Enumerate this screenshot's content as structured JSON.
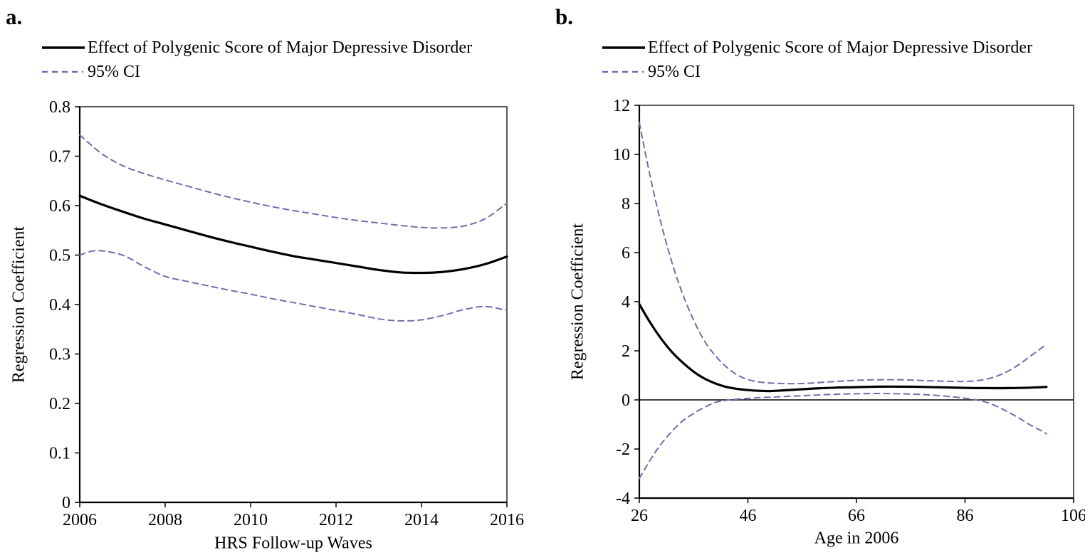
{
  "figure": {
    "colors": {
      "line": "#000000",
      "ci": "#7a68ad",
      "frame": "#595959"
    },
    "panels": [
      {
        "label": "a.",
        "legend": [
          {
            "label": "Effect of Polygenic Score of Major Depressive Disorder",
            "style": "solid"
          },
          {
            "label": "95% CI",
            "style": "dashed"
          }
        ],
        "ylabel": "Regression Coefficient",
        "xlabel": "HRS Follow-up Waves"
      },
      {
        "label": "b.",
        "legend": [
          {
            "label": "Effect of Polygenic Score of Major Depressive Disorder",
            "style": "solid"
          },
          {
            "label": "95% CI",
            "style": "dashed"
          }
        ],
        "ylabel": "Regression Coefficient",
        "xlabel": "Age in 2006"
      }
    ]
  },
  "chart_data": [
    {
      "type": "line",
      "panel": "a",
      "title": "",
      "xlabel": "HRS Follow-up Waves",
      "ylabel": "Regression Coefficient",
      "xlim": [
        2006,
        2016
      ],
      "ylim": [
        0,
        0.8
      ],
      "grid": false,
      "zero_line": false,
      "legend_position": "top-left-outside",
      "xticks": {
        "values": [
          2006,
          2008,
          2010,
          2012,
          2014,
          2016
        ],
        "labels": [
          "2006",
          "2008",
          "2010",
          "2012",
          "2014",
          "2016"
        ]
      },
      "yticks": {
        "values": [
          0,
          0.1,
          0.2,
          0.3,
          0.4,
          0.5,
          0.6,
          0.7,
          0.8
        ],
        "labels": [
          "0",
          "0.1",
          "0.2",
          "0.3",
          "0.4",
          "0.5",
          "0.6",
          "0.7",
          "0.8"
        ]
      },
      "series": [
        {
          "name": "Effect of Polygenic Score of Major Depressive Disorder",
          "style": "solid",
          "color": "#000000",
          "points": [
            [
              2006,
              0.62
            ],
            [
              2006.5,
              0.603
            ],
            [
              2007,
              0.588
            ],
            [
              2007.5,
              0.574
            ],
            [
              2008,
              0.562
            ],
            [
              2008.5,
              0.55
            ],
            [
              2009,
              0.538
            ],
            [
              2009.5,
              0.527
            ],
            [
              2010,
              0.517
            ],
            [
              2010.5,
              0.507
            ],
            [
              2011,
              0.498
            ],
            [
              2011.5,
              0.491
            ],
            [
              2012,
              0.484
            ],
            [
              2012.5,
              0.477
            ],
            [
              2013,
              0.47
            ],
            [
              2013.5,
              0.465
            ],
            [
              2014,
              0.464
            ],
            [
              2014.5,
              0.466
            ],
            [
              2015,
              0.472
            ],
            [
              2015.5,
              0.482
            ],
            [
              2016,
              0.497
            ]
          ]
        },
        {
          "name": "95% CI (upper)",
          "style": "dashed",
          "color": "#7a68ad",
          "points": [
            [
              2006,
              0.743
            ],
            [
              2006.5,
              0.706
            ],
            [
              2007,
              0.681
            ],
            [
              2007.5,
              0.665
            ],
            [
              2008,
              0.652
            ],
            [
              2008.5,
              0.64
            ],
            [
              2009,
              0.628
            ],
            [
              2009.5,
              0.617
            ],
            [
              2010,
              0.607
            ],
            [
              2010.5,
              0.598
            ],
            [
              2011,
              0.59
            ],
            [
              2011.5,
              0.583
            ],
            [
              2012,
              0.576
            ],
            [
              2012.5,
              0.57
            ],
            [
              2013,
              0.565
            ],
            [
              2013.5,
              0.56
            ],
            [
              2014,
              0.556
            ],
            [
              2014.5,
              0.555
            ],
            [
              2015,
              0.559
            ],
            [
              2015.5,
              0.574
            ],
            [
              2016,
              0.605
            ]
          ]
        },
        {
          "name": "95% CI (lower)",
          "style": "dashed",
          "color": "#7a68ad",
          "points": [
            [
              2006,
              0.5
            ],
            [
              2006.4,
              0.509
            ],
            [
              2007,
              0.5
            ],
            [
              2007.5,
              0.477
            ],
            [
              2008,
              0.457
            ],
            [
              2008.5,
              0.447
            ],
            [
              2009,
              0.438
            ],
            [
              2009.5,
              0.429
            ],
            [
              2010,
              0.421
            ],
            [
              2010.5,
              0.412
            ],
            [
              2011,
              0.404
            ],
            [
              2011.5,
              0.396
            ],
            [
              2012,
              0.388
            ],
            [
              2012.5,
              0.38
            ],
            [
              2013,
              0.371
            ],
            [
              2013.5,
              0.367
            ],
            [
              2014,
              0.369
            ],
            [
              2014.5,
              0.378
            ],
            [
              2015,
              0.39
            ],
            [
              2015.5,
              0.396
            ],
            [
              2016,
              0.388
            ]
          ]
        }
      ]
    },
    {
      "type": "line",
      "panel": "b",
      "title": "",
      "xlabel": "Age in 2006",
      "ylabel": "Regression Coefficient",
      "xlim": [
        26,
        106
      ],
      "ylim": [
        -4,
        12
      ],
      "grid": false,
      "zero_line": true,
      "legend_position": "top-left-outside",
      "xticks": {
        "values": [
          26,
          46,
          66,
          86,
          106
        ],
        "labels": [
          "26",
          "46",
          "66",
          "86",
          "106"
        ]
      },
      "yticks": {
        "values": [
          -4,
          -2,
          0,
          2,
          4,
          6,
          8,
          10,
          12
        ],
        "labels": [
          "-4",
          "-2",
          "0",
          "2",
          "4",
          "6",
          "8",
          "10",
          "12"
        ]
      },
      "series": [
        {
          "name": "Effect of Polygenic Score of Major Depressive Disorder",
          "style": "solid",
          "color": "#000000",
          "points": [
            [
              26,
              3.9
            ],
            [
              28,
              3.15
            ],
            [
              30,
              2.5
            ],
            [
              32,
              1.95
            ],
            [
              34,
              1.52
            ],
            [
              36,
              1.15
            ],
            [
              38,
              0.87
            ],
            [
              40,
              0.67
            ],
            [
              42,
              0.53
            ],
            [
              44,
              0.45
            ],
            [
              46,
              0.4
            ],
            [
              48,
              0.37
            ],
            [
              50,
              0.36
            ],
            [
              52,
              0.38
            ],
            [
              55,
              0.42
            ],
            [
              58,
              0.46
            ],
            [
              62,
              0.5
            ],
            [
              66,
              0.52
            ],
            [
              70,
              0.54
            ],
            [
              74,
              0.54
            ],
            [
              78,
              0.53
            ],
            [
              82,
              0.51
            ],
            [
              86,
              0.49
            ],
            [
              90,
              0.48
            ],
            [
              94,
              0.48
            ],
            [
              98,
              0.5
            ],
            [
              101,
              0.53
            ]
          ]
        },
        {
          "name": "95% CI (upper)",
          "style": "dashed",
          "color": "#7a68ad",
          "points": [
            [
              26,
              11.3
            ],
            [
              28,
              9.1
            ],
            [
              30,
              7.2
            ],
            [
              32,
              5.6
            ],
            [
              34,
              4.3
            ],
            [
              36,
              3.25
            ],
            [
              38,
              2.4
            ],
            [
              40,
              1.8
            ],
            [
              42,
              1.35
            ],
            [
              44,
              1.02
            ],
            [
              46,
              0.83
            ],
            [
              48,
              0.73
            ],
            [
              50,
              0.69
            ],
            [
              52,
              0.67
            ],
            [
              55,
              0.66
            ],
            [
              58,
              0.69
            ],
            [
              62,
              0.75
            ],
            [
              66,
              0.8
            ],
            [
              70,
              0.82
            ],
            [
              74,
              0.82
            ],
            [
              78,
              0.79
            ],
            [
              82,
              0.76
            ],
            [
              86,
              0.75
            ],
            [
              88,
              0.78
            ],
            [
              90,
              0.85
            ],
            [
              92,
              0.98
            ],
            [
              94,
              1.18
            ],
            [
              96,
              1.45
            ],
            [
              98,
              1.78
            ],
            [
              100,
              2.1
            ],
            [
              101,
              2.28
            ]
          ]
        },
        {
          "name": "95% CI (lower)",
          "style": "dashed",
          "color": "#7a68ad",
          "points": [
            [
              26,
              -3.2
            ],
            [
              28,
              -2.45
            ],
            [
              30,
              -1.8
            ],
            [
              32,
              -1.28
            ],
            [
              34,
              -0.85
            ],
            [
              36,
              -0.55
            ],
            [
              38,
              -0.3
            ],
            [
              40,
              -0.1
            ],
            [
              42,
              -0.02
            ],
            [
              44,
              0.03
            ],
            [
              46,
              0.06
            ],
            [
              48,
              0.09
            ],
            [
              50,
              0.11
            ],
            [
              52,
              0.13
            ],
            [
              55,
              0.16
            ],
            [
              58,
              0.19
            ],
            [
              62,
              0.23
            ],
            [
              66,
              0.25
            ],
            [
              70,
              0.26
            ],
            [
              74,
              0.25
            ],
            [
              78,
              0.22
            ],
            [
              82,
              0.16
            ],
            [
              86,
              0.07
            ],
            [
              88,
              0.0
            ],
            [
              90,
              -0.1
            ],
            [
              92,
              -0.28
            ],
            [
              94,
              -0.5
            ],
            [
              96,
              -0.75
            ],
            [
              98,
              -1.02
            ],
            [
              100,
              -1.25
            ],
            [
              101,
              -1.38
            ]
          ]
        }
      ]
    }
  ]
}
